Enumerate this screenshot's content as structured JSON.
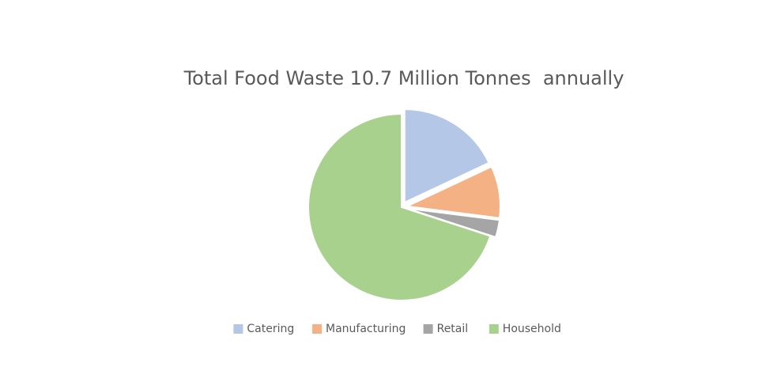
{
  "chart_data": {
    "type": "pie",
    "title": "Total Food Waste 10.7 Million Tonnes  annually",
    "categories": [
      "Catering",
      "Manufacturing",
      "Retail",
      "Household"
    ],
    "values": [
      18,
      9,
      3,
      70
    ],
    "colors": [
      "#b4c7e7",
      "#f4b183",
      "#a5a5a5",
      "#a9d18e"
    ],
    "exploded": [
      true,
      true,
      true,
      false
    ],
    "legend": "bottom"
  }
}
